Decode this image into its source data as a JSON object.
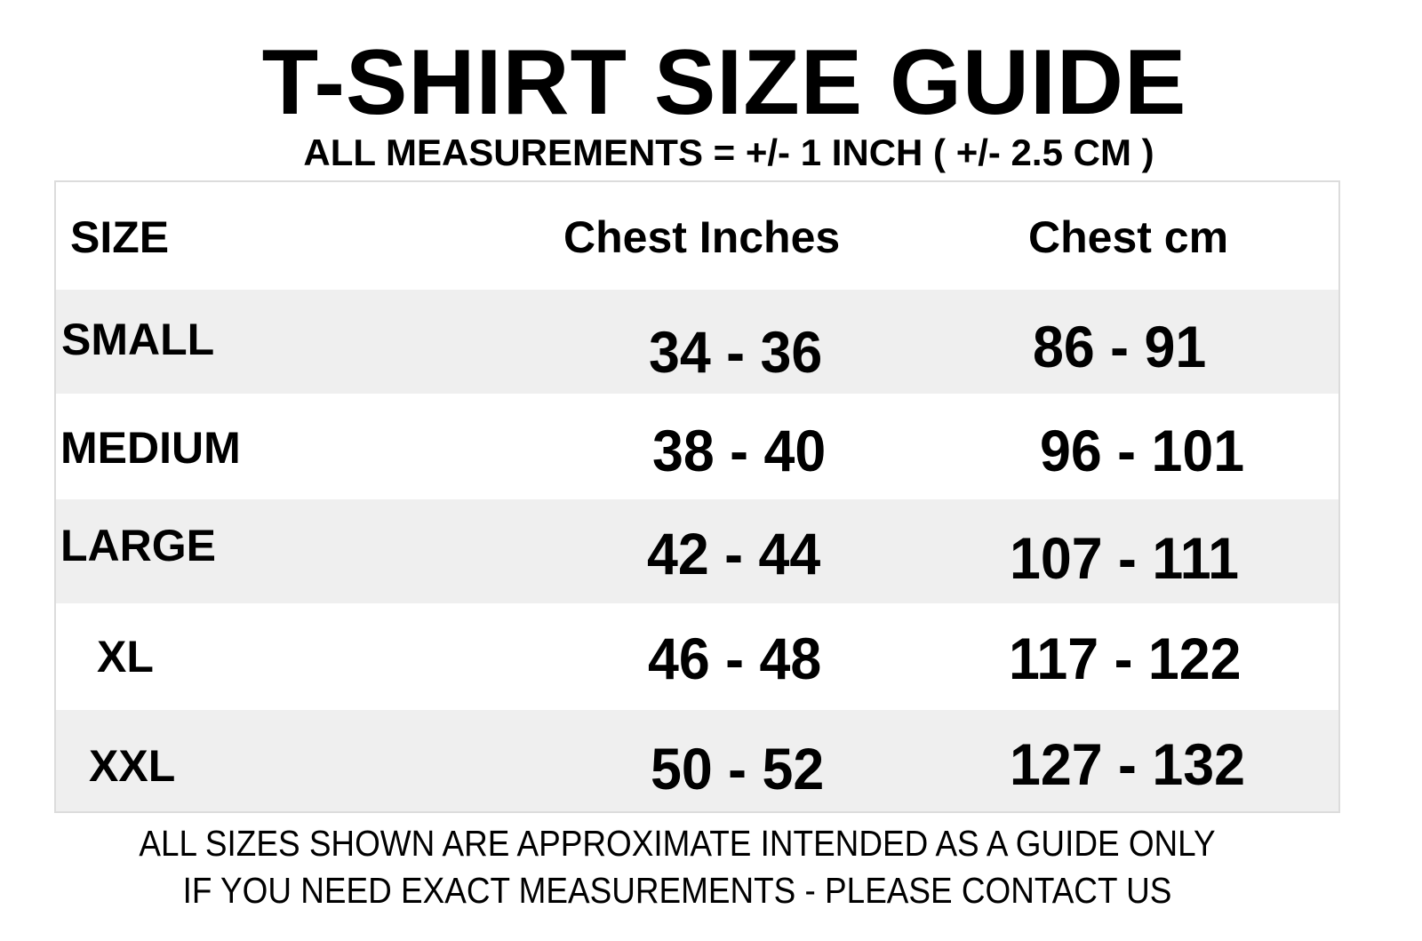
{
  "title": "T-SHIRT SIZE GUIDE",
  "subtitle": "ALL MEASUREMENTS = +/- 1 INCH ( +/- 2.5 CM )",
  "table": {
    "headers": [
      "SIZE",
      "Chest Inches",
      "Chest cm"
    ],
    "rows": [
      {
        "size": "SMALL",
        "inches": "34 - 36",
        "cm": "86 - 91"
      },
      {
        "size": "MEDIUM",
        "inches": "38 - 40",
        "cm": "96 - 101"
      },
      {
        "size": "LARGE",
        "inches": "42 - 44",
        "cm": "107 - 111"
      },
      {
        "size": "XL",
        "inches": "46 - 48",
        "cm": "117 - 122"
      },
      {
        "size": "XXL",
        "inches": "50 - 52",
        "cm": "127 - 132"
      }
    ],
    "row_shade_color": "#efefef"
  },
  "footer": {
    "line1": "ALL SIZES SHOWN ARE APPROXIMATE INTENDED AS A GUIDE ONLY",
    "line2": "IF  YOU NEED EXACT MEASUREMENTS - PLEASE CONTACT US"
  }
}
